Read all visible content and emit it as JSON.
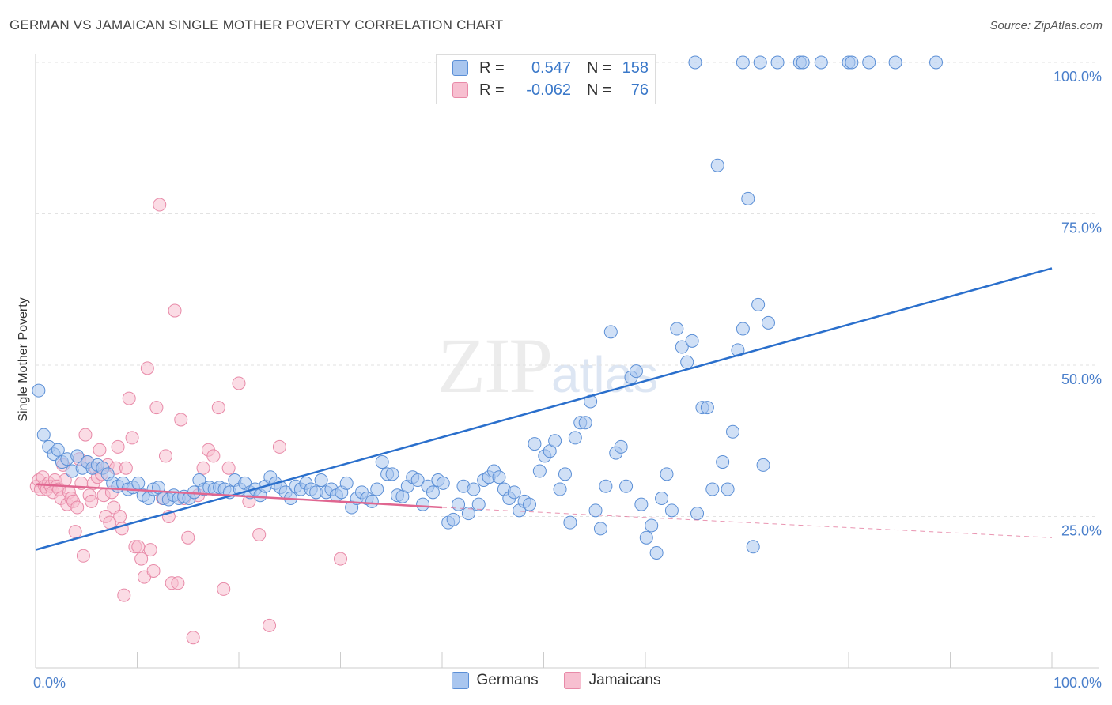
{
  "header": {
    "title": "GERMAN VS JAMAICAN SINGLE MOTHER POVERTY CORRELATION CHART",
    "source": "Source: ZipAtlas.com"
  },
  "watermark": {
    "zip": "ZIP",
    "atlas": "atlas"
  },
  "legend_top": {
    "rows": [
      {
        "r_label": "R =",
        "r_value": "0.547",
        "n_label": "N =",
        "n_value": "158",
        "color": "#a9c6ef",
        "border": "#5b8fd6"
      },
      {
        "r_label": "R =",
        "r_value": "-0.062",
        "n_label": "N =",
        "n_value": "76",
        "color": "#f7bfd0",
        "border": "#e88aa8"
      }
    ]
  },
  "legend_bottom": [
    {
      "label": "Germans",
      "color": "#a9c6ef",
      "border": "#5b8fd6"
    },
    {
      "label": "Jamaicans",
      "color": "#f7bfd0",
      "border": "#e88aa8"
    }
  ],
  "chart_data": {
    "type": "scatter",
    "title": "GERMAN VS JAMAICAN SINGLE MOTHER POVERTY CORRELATION CHART",
    "xlabel": "",
    "ylabel": "Single Mother Poverty",
    "xlim": [
      0,
      100
    ],
    "ylim": [
      0,
      100
    ],
    "x_tick_labels": [
      "0.0%",
      "100.0%"
    ],
    "y_ticks": [
      25,
      50,
      75,
      100
    ],
    "y_tick_labels": [
      "25.0%",
      "50.0%",
      "75.0%",
      "100.0%"
    ],
    "grid": true,
    "legend_position": "top-center",
    "colors": {
      "germans_fill": "#a9c6ef",
      "germans_stroke": "#5b8fd6",
      "germans_line": "#2a6fcc",
      "jamaicans_fill": "#f7bfd0",
      "jamaicans_stroke": "#e88aa8",
      "jamaicans_line": "#e06690",
      "tick_label": "#4a7fcb"
    },
    "series": [
      {
        "name": "Germans",
        "trend": {
          "x0": 0,
          "y0": 19.5,
          "x1": 100,
          "y1": 66
        },
        "points": [
          [
            0.3,
            45.8
          ],
          [
            0.8,
            38.5
          ],
          [
            1.3,
            36.5
          ],
          [
            1.8,
            35.3
          ],
          [
            2.2,
            36
          ],
          [
            2.6,
            34
          ],
          [
            3.1,
            34.5
          ],
          [
            3.6,
            32.5
          ],
          [
            4.1,
            35
          ],
          [
            4.6,
            33
          ],
          [
            5.1,
            34
          ],
          [
            5.6,
            33
          ],
          [
            6.1,
            33.5
          ],
          [
            6.6,
            33
          ],
          [
            7.1,
            32
          ],
          [
            7.6,
            30.5
          ],
          [
            8.1,
            30
          ],
          [
            8.6,
            30.5
          ],
          [
            9.1,
            29.5
          ],
          [
            9.6,
            29.8
          ],
          [
            10.1,
            30.5
          ],
          [
            10.6,
            28.5
          ],
          [
            11.1,
            28
          ],
          [
            11.6,
            29.5
          ],
          [
            12.1,
            29.8
          ],
          [
            12.6,
            28
          ],
          [
            13.1,
            27.8
          ],
          [
            13.6,
            28.5
          ],
          [
            14.1,
            28
          ],
          [
            14.6,
            28.3
          ],
          [
            15.1,
            28
          ],
          [
            15.6,
            29
          ],
          [
            16.1,
            31
          ],
          [
            16.6,
            29.5
          ],
          [
            17.1,
            29.8
          ],
          [
            17.6,
            29.5
          ],
          [
            18.1,
            29.8
          ],
          [
            18.6,
            29.5
          ],
          [
            19.1,
            29
          ],
          [
            19.6,
            31
          ],
          [
            20.1,
            29.5
          ],
          [
            20.6,
            30.5
          ],
          [
            21.1,
            29
          ],
          [
            21.6,
            29.5
          ],
          [
            22.1,
            28.5
          ],
          [
            22.6,
            30
          ],
          [
            23.1,
            31.5
          ],
          [
            23.6,
            30.5
          ],
          [
            24.1,
            29.8
          ],
          [
            24.6,
            29
          ],
          [
            25.1,
            28
          ],
          [
            25.6,
            30
          ],
          [
            26.1,
            29.5
          ],
          [
            26.6,
            30.5
          ],
          [
            27.1,
            29.5
          ],
          [
            27.6,
            29
          ],
          [
            28.1,
            31
          ],
          [
            28.6,
            29
          ],
          [
            29.1,
            29.5
          ],
          [
            29.6,
            28.5
          ],
          [
            30.1,
            29
          ],
          [
            30.6,
            30.5
          ],
          [
            31.1,
            26.5
          ],
          [
            31.6,
            28
          ],
          [
            32.1,
            29
          ],
          [
            32.6,
            28
          ],
          [
            33.1,
            27.5
          ],
          [
            33.6,
            29.5
          ],
          [
            34.1,
            34
          ],
          [
            34.6,
            32
          ],
          [
            35.1,
            32
          ],
          [
            35.6,
            28.5
          ],
          [
            36.1,
            28.3
          ],
          [
            36.6,
            30
          ],
          [
            37.1,
            31.5
          ],
          [
            37.6,
            31
          ],
          [
            38.1,
            27
          ],
          [
            38.6,
            30
          ],
          [
            39.1,
            29
          ],
          [
            39.6,
            31
          ],
          [
            40.1,
            30.5
          ],
          [
            40.6,
            24
          ],
          [
            41.1,
            24.5
          ],
          [
            41.6,
            27
          ],
          [
            42.1,
            30
          ],
          [
            42.6,
            25.5
          ],
          [
            43.1,
            29.5
          ],
          [
            43.6,
            27
          ],
          [
            44.1,
            31
          ],
          [
            44.6,
            31.5
          ],
          [
            45.1,
            32.5
          ],
          [
            45.6,
            31.5
          ],
          [
            46.1,
            29.5
          ],
          [
            46.6,
            28
          ],
          [
            47.1,
            29
          ],
          [
            47.6,
            26
          ],
          [
            48.1,
            27.5
          ],
          [
            48.6,
            27
          ],
          [
            49.1,
            37
          ],
          [
            49.6,
            32.5
          ],
          [
            50.1,
            35
          ],
          [
            50.6,
            35.8
          ],
          [
            51.1,
            37.5
          ],
          [
            51.6,
            29.5
          ],
          [
            52.1,
            32
          ],
          [
            52.6,
            24
          ],
          [
            53.1,
            38
          ],
          [
            53.6,
            40.5
          ],
          [
            54.1,
            40.5
          ],
          [
            54.6,
            44
          ],
          [
            55.1,
            26
          ],
          [
            55.6,
            23
          ],
          [
            56.1,
            30
          ],
          [
            56.6,
            55.5
          ],
          [
            57.1,
            35.5
          ],
          [
            57.6,
            36.5
          ],
          [
            58.1,
            30
          ],
          [
            58.6,
            48
          ],
          [
            59.1,
            49
          ],
          [
            59.6,
            27
          ],
          [
            60.1,
            21.5
          ],
          [
            60.6,
            23.5
          ],
          [
            61.1,
            19
          ],
          [
            61.6,
            28
          ],
          [
            62.1,
            32
          ],
          [
            62.6,
            26
          ],
          [
            63.1,
            56
          ],
          [
            63.6,
            53
          ],
          [
            64.1,
            50.5
          ],
          [
            64.6,
            54
          ],
          [
            65.1,
            25.5
          ],
          [
            65.6,
            43
          ],
          [
            66.1,
            43
          ],
          [
            66.6,
            29.5
          ],
          [
            67.1,
            83
          ],
          [
            67.6,
            34
          ],
          [
            68.1,
            29.5
          ],
          [
            68.6,
            39
          ],
          [
            69.1,
            52.5
          ],
          [
            69.6,
            56
          ],
          [
            70.1,
            77.5
          ],
          [
            70.6,
            20
          ],
          [
            71.1,
            60
          ],
          [
            71.6,
            33.5
          ],
          [
            72.1,
            57
          ],
          [
            64.9,
            100
          ],
          [
            69.6,
            100
          ],
          [
            71.3,
            100
          ],
          [
            73.0,
            100
          ],
          [
            75.2,
            100
          ],
          [
            75.5,
            100
          ],
          [
            77.3,
            100
          ],
          [
            80.0,
            100
          ],
          [
            80.3,
            100
          ],
          [
            82.0,
            100
          ],
          [
            84.6,
            100
          ],
          [
            88.6,
            100
          ]
        ]
      },
      {
        "name": "Jamaicans",
        "trend": {
          "x0": 0,
          "y0": 30.3,
          "x1": 40,
          "y1": 26.5,
          "dash_to_x": 100,
          "dash_to_y": 21.5
        },
        "points": [
          [
            0.1,
            30
          ],
          [
            0.3,
            31
          ],
          [
            0.5,
            29.5
          ],
          [
            0.7,
            31.5
          ],
          [
            0.9,
            30
          ],
          [
            1.1,
            29.5
          ],
          [
            1.3,
            30.5
          ],
          [
            1.5,
            30
          ],
          [
            1.7,
            29
          ],
          [
            1.9,
            31
          ],
          [
            2.1,
            30
          ],
          [
            2.3,
            29.5
          ],
          [
            2.5,
            28
          ],
          [
            2.7,
            33.5
          ],
          [
            2.9,
            31
          ],
          [
            3.1,
            27
          ],
          [
            3.3,
            29
          ],
          [
            3.5,
            28
          ],
          [
            3.7,
            27.5
          ],
          [
            3.9,
            22.5
          ],
          [
            4.1,
            26.5
          ],
          [
            4.3,
            34.5
          ],
          [
            4.5,
            30.5
          ],
          [
            4.7,
            18.5
          ],
          [
            4.9,
            38.5
          ],
          [
            5.1,
            34
          ],
          [
            5.3,
            28.5
          ],
          [
            5.5,
            27.5
          ],
          [
            5.7,
            30.5
          ],
          [
            5.9,
            33
          ],
          [
            6.1,
            31.5
          ],
          [
            6.3,
            36
          ],
          [
            6.5,
            32
          ],
          [
            6.7,
            28.5
          ],
          [
            6.9,
            25
          ],
          [
            7.1,
            33.5
          ],
          [
            7.3,
            24
          ],
          [
            7.5,
            29
          ],
          [
            7.7,
            26.5
          ],
          [
            7.9,
            33
          ],
          [
            8.1,
            36.5
          ],
          [
            8.3,
            25
          ],
          [
            8.5,
            23
          ],
          [
            8.7,
            12
          ],
          [
            8.9,
            33
          ],
          [
            9.2,
            44.5
          ],
          [
            9.5,
            38
          ],
          [
            9.8,
            20
          ],
          [
            10.1,
            20
          ],
          [
            10.4,
            18
          ],
          [
            10.7,
            15
          ],
          [
            11.0,
            49.5
          ],
          [
            11.3,
            19.5
          ],
          [
            11.6,
            16
          ],
          [
            11.9,
            43
          ],
          [
            12.2,
            76.5
          ],
          [
            12.5,
            28
          ],
          [
            12.8,
            35
          ],
          [
            13.1,
            25
          ],
          [
            13.4,
            14
          ],
          [
            13.7,
            59
          ],
          [
            14.0,
            14
          ],
          [
            14.3,
            41
          ],
          [
            14.6,
            28
          ],
          [
            15.0,
            21.5
          ],
          [
            15.5,
            5
          ],
          [
            16.0,
            28.5
          ],
          [
            16.5,
            33
          ],
          [
            17.0,
            36
          ],
          [
            17.5,
            35
          ],
          [
            18.0,
            43
          ],
          [
            18.5,
            13
          ],
          [
            19.0,
            33
          ],
          [
            20.0,
            47
          ],
          [
            21.0,
            27.5
          ],
          [
            22.0,
            22
          ],
          [
            23.0,
            7
          ],
          [
            24.0,
            36.5
          ],
          [
            30.0,
            18
          ]
        ]
      }
    ]
  }
}
